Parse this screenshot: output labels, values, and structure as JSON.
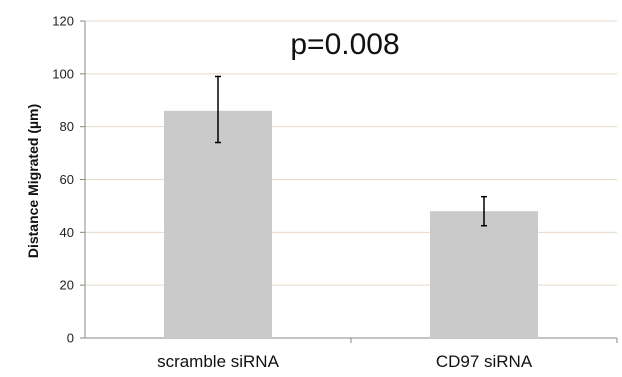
{
  "chart_data": {
    "type": "bar",
    "categories": [
      "scramble siRNA",
      "CD97 siRNA"
    ],
    "values": [
      86,
      48
    ],
    "error": [
      [
        74,
        99
      ],
      [
        42.5,
        53.5
      ]
    ],
    "ylabel": "Distance Migrated (µm)",
    "xlabel": "",
    "ylim": [
      0,
      120
    ],
    "yticks": [
      0,
      20,
      40,
      60,
      80,
      100,
      120
    ],
    "annotation": "p=0.008",
    "grid": true,
    "colors": {
      "bar": "#cacaca",
      "grid": "#e8d9c8",
      "axis": "#888888",
      "error_bar": "#000000"
    }
  }
}
